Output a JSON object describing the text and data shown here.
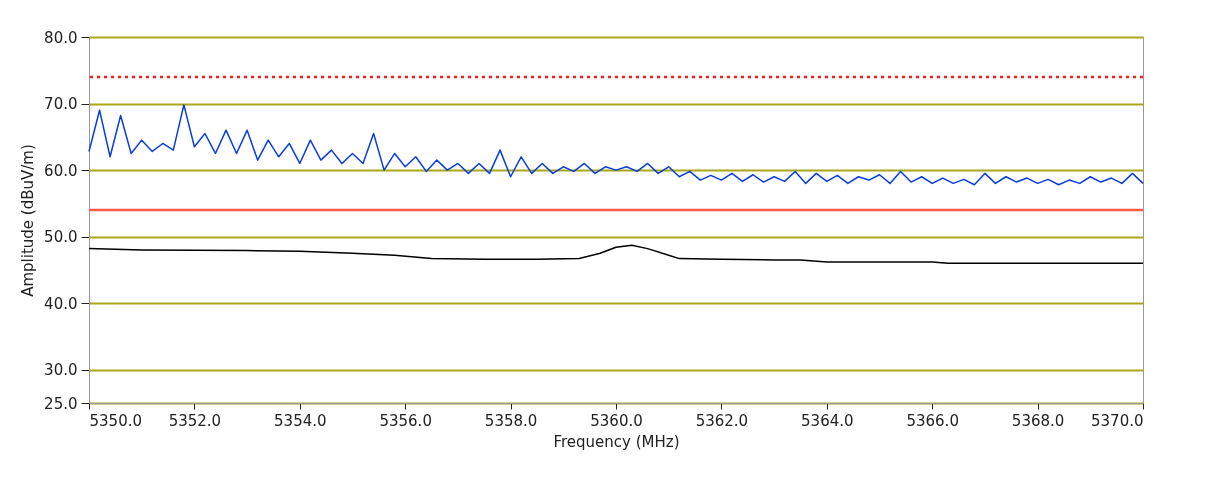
{
  "chart_data": {
    "type": "line",
    "xlabel": "Frequency (MHz)",
    "ylabel": "Amplitude (dBuV/m)",
    "xlim": [
      5350,
      5370
    ],
    "ylim": [
      25,
      80
    ],
    "xticks": [
      {
        "value": 5350,
        "label": "5350.0"
      },
      {
        "value": 5352,
        "label": "5352.0"
      },
      {
        "value": 5354,
        "label": "5354.0"
      },
      {
        "value": 5356,
        "label": "5356.0"
      },
      {
        "value": 5358,
        "label": "5358.0"
      },
      {
        "value": 5360,
        "label": "5360.0"
      },
      {
        "value": 5362,
        "label": "5362.0"
      },
      {
        "value": 5364,
        "label": "5364.0"
      },
      {
        "value": 5366,
        "label": "5366.0"
      },
      {
        "value": 5368,
        "label": "5368.0"
      },
      {
        "value": 5370,
        "label": "5370.0"
      }
    ],
    "yticks": [
      {
        "value": 25,
        "label": "25.0"
      },
      {
        "value": 30,
        "label": "30.0"
      },
      {
        "value": 40,
        "label": "40.0"
      },
      {
        "value": 50,
        "label": "50.0"
      },
      {
        "value": 60,
        "label": "60.0"
      },
      {
        "value": 70,
        "label": "70.0"
      },
      {
        "value": 80,
        "label": "80.0"
      }
    ],
    "grid": "y",
    "line_style": "solid",
    "ref_lines": [
      {
        "axis": "y",
        "value": 74,
        "color": "#ff1a1a",
        "line_style": "dotted"
      },
      {
        "axis": "y",
        "value": 54,
        "color": "#ff5a4a",
        "line_style": "solid"
      }
    ],
    "series": [
      {
        "color": "#0a3ddc",
        "x": [
          5350.0,
          5350.2,
          5350.4,
          5350.6,
          5350.8,
          5351.0,
          5351.2,
          5351.4,
          5351.6,
          5351.8,
          5352.0,
          5352.2,
          5352.4,
          5352.6,
          5352.8,
          5353.0,
          5353.2,
          5353.4,
          5353.6,
          5353.8,
          5354.0,
          5354.2,
          5354.4,
          5354.6,
          5354.8,
          5355.0,
          5355.2,
          5355.4,
          5355.6,
          5355.8,
          5356.0,
          5356.2,
          5356.4,
          5356.6,
          5356.8,
          5357.0,
          5357.2,
          5357.4,
          5357.6,
          5357.8,
          5358.0,
          5358.2,
          5358.4,
          5358.6,
          5358.8,
          5359.0,
          5359.2,
          5359.4,
          5359.6,
          5359.8,
          5360.0,
          5360.2,
          5360.4,
          5360.6,
          5360.8,
          5361.0,
          5361.2,
          5361.4,
          5361.6,
          5361.8,
          5362.0,
          5362.2,
          5362.4,
          5362.6,
          5362.8,
          5363.0,
          5363.2,
          5363.4,
          5363.6,
          5363.8,
          5364.0,
          5364.2,
          5364.4,
          5364.6,
          5364.8,
          5365.0,
          5365.2,
          5365.4,
          5365.6,
          5365.8,
          5366.0,
          5366.2,
          5366.4,
          5366.6,
          5366.8,
          5367.0,
          5367.2,
          5367.4,
          5367.6,
          5367.8,
          5368.0,
          5368.2,
          5368.4,
          5368.6,
          5368.8,
          5369.0,
          5369.2,
          5369.4,
          5369.6,
          5369.8,
          5370.0
        ],
        "values": [
          62.8,
          69.0,
          62.0,
          68.2,
          62.5,
          64.5,
          62.8,
          64.0,
          63.0,
          69.8,
          63.5,
          65.5,
          62.5,
          66.0,
          62.5,
          66.0,
          61.5,
          64.5,
          62.0,
          64.0,
          61.0,
          64.5,
          61.5,
          63.0,
          61.0,
          62.5,
          61.0,
          65.5,
          60.0,
          62.5,
          60.5,
          62.0,
          59.8,
          61.5,
          60.0,
          61.0,
          59.5,
          61.0,
          59.5,
          63.0,
          59.0,
          62.0,
          59.5,
          61.0,
          59.5,
          60.5,
          59.8,
          61.0,
          59.5,
          60.5,
          60.0,
          60.5,
          59.8,
          61.0,
          59.5,
          60.5,
          59.0,
          59.8,
          58.5,
          59.2,
          58.5,
          59.5,
          58.3,
          59.3,
          58.2,
          59.0,
          58.3,
          59.8,
          58.0,
          59.5,
          58.3,
          59.2,
          58.0,
          59.0,
          58.5,
          59.3,
          58.0,
          59.8,
          58.2,
          59.0,
          58.0,
          58.8,
          58.0,
          58.6,
          57.8,
          59.5,
          58.0,
          59.0,
          58.2,
          58.8,
          58.0,
          58.6,
          57.8,
          58.5,
          58.0,
          59.0,
          58.2,
          58.8,
          58.0,
          59.5,
          58.0
        ]
      },
      {
        "color": "#000000",
        "x": [
          5350.0,
          5351.0,
          5353.0,
          5354.0,
          5355.0,
          5355.8,
          5356.5,
          5357.5,
          5358.5,
          5359.3,
          5359.7,
          5360.0,
          5360.3,
          5360.6,
          5361.0,
          5361.2,
          5362.0,
          5363.0,
          5363.5,
          5364.0,
          5365.0,
          5366.0,
          5366.3,
          5367.0,
          5368.0,
          5369.0,
          5370.0
        ],
        "values": [
          48.2,
          48.0,
          47.9,
          47.8,
          47.5,
          47.2,
          46.7,
          46.6,
          46.6,
          46.7,
          47.5,
          48.4,
          48.7,
          48.2,
          47.2,
          46.7,
          46.6,
          46.5,
          46.5,
          46.2,
          46.2,
          46.2,
          46.0,
          46.0,
          46.0,
          46.0,
          46.0
        ]
      }
    ]
  }
}
